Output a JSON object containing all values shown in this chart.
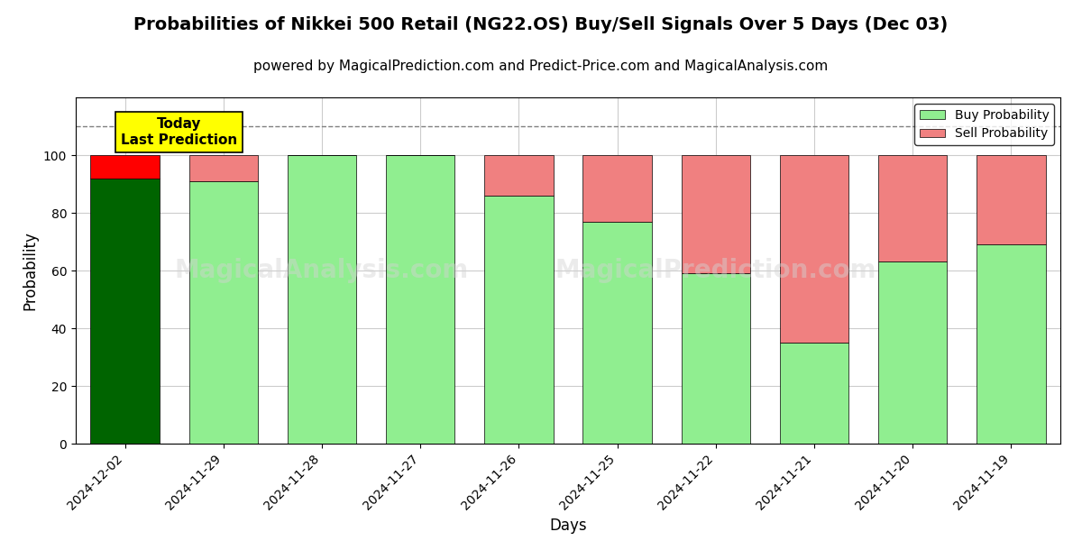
{
  "title": "Probabilities of Nikkei 500 Retail (NG22.OS) Buy/Sell Signals Over 5 Days (Dec 03)",
  "subtitle": "powered by MagicalPrediction.com and Predict-Price.com and MagicalAnalysis.com",
  "xlabel": "Days",
  "ylabel": "Probability",
  "categories": [
    "2024-12-02",
    "2024-11-29",
    "2024-11-28",
    "2024-11-27",
    "2024-11-26",
    "2024-11-25",
    "2024-11-22",
    "2024-11-21",
    "2024-11-20",
    "2024-11-19"
  ],
  "buy_values": [
    92,
    91,
    100,
    100,
    86,
    77,
    59,
    35,
    63,
    69
  ],
  "sell_values": [
    8,
    9,
    0,
    0,
    14,
    23,
    41,
    65,
    37,
    31
  ],
  "today_bar_buy_color": "#006400",
  "today_bar_sell_color": "#ff0000",
  "regular_buy_color": "#90EE90",
  "regular_sell_color": "#F08080",
  "legend_buy_color": "#90EE90",
  "legend_sell_color": "#F08080",
  "today_annotation_bg": "#ffff00",
  "today_annotation_text": "Today\nLast Prediction",
  "dashed_line_y": 110,
  "ylim": [
    0,
    120
  ],
  "yticks": [
    0,
    20,
    40,
    60,
    80,
    100
  ],
  "background_color": "#ffffff",
  "grid_color": "#cccccc",
  "title_fontsize": 14,
  "subtitle_fontsize": 11,
  "label_fontsize": 12,
  "tick_fontsize": 10
}
